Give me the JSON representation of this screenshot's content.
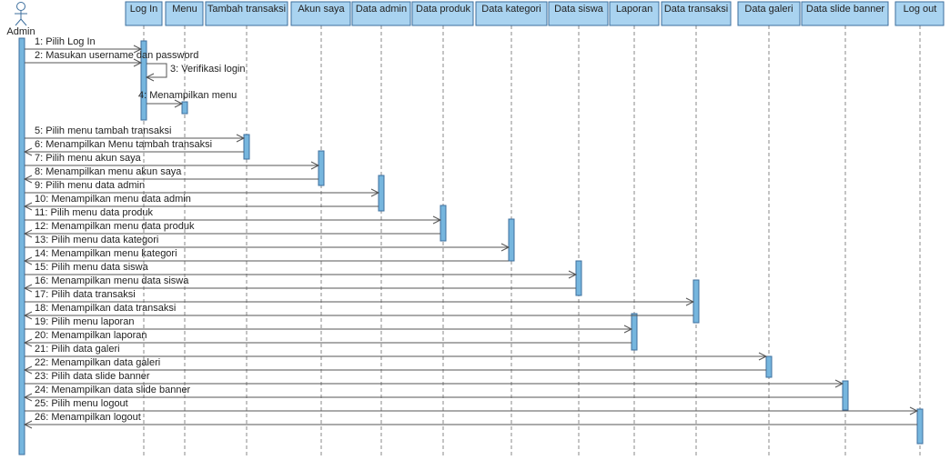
{
  "actor": {
    "label": "Admin"
  },
  "lifelines": [
    {
      "label": "Log In"
    },
    {
      "label": "Menu"
    },
    {
      "label": "Tambah transaksi"
    },
    {
      "label": "Akun saya"
    },
    {
      "label": "Data admin"
    },
    {
      "label": "Data produk"
    },
    {
      "label": "Data kategori"
    },
    {
      "label": "Data siswa"
    },
    {
      "label": "Laporan"
    },
    {
      "label": "Data transaksi"
    },
    {
      "label": "Data galeri"
    },
    {
      "label": "Data slide banner"
    },
    {
      "label": "Log out"
    }
  ],
  "messages": [
    {
      "label": "1: Pilih Log In"
    },
    {
      "label": "2: Masukan username dan password"
    },
    {
      "label": "3: Verifikasi login"
    },
    {
      "label": "4: Menampilkan menu"
    },
    {
      "label": "5: Pilih menu tambah transaksi"
    },
    {
      "label": "6: Menampilkan Menu tambah transaksi"
    },
    {
      "label": "7: Pilih menu akun saya"
    },
    {
      "label": "8: Menampilkan menu akun saya"
    },
    {
      "label": "9: Pilih menu data admin"
    },
    {
      "label": "10: Menampilkan menu data admin"
    },
    {
      "label": "11: Pilih menu data produk"
    },
    {
      "label": "12: Menampilkan menu data produk"
    },
    {
      "label": "13: Pilih menu data kategori"
    },
    {
      "label": "14: Menampilkan menu kategori"
    },
    {
      "label": "15: Pilih menu data siswa"
    },
    {
      "label": "16: Menampilkan menu data siswa"
    },
    {
      "label": "17: Pilih data transaksi"
    },
    {
      "label": "18: Menampilkan data transaksi"
    },
    {
      "label": "19: Pilih menu laporan"
    },
    {
      "label": "20: Menampilkan laporan"
    },
    {
      "label": "21: Pilih data galeri"
    },
    {
      "label": "22: Menampilkan data galeri"
    },
    {
      "label": "23: Pilih data slide banner"
    },
    {
      "label": "24: Menampilkan data slide banner"
    },
    {
      "label": "25: Pilih menu logout"
    },
    {
      "label": "26: Menampilkan logout"
    }
  ]
}
